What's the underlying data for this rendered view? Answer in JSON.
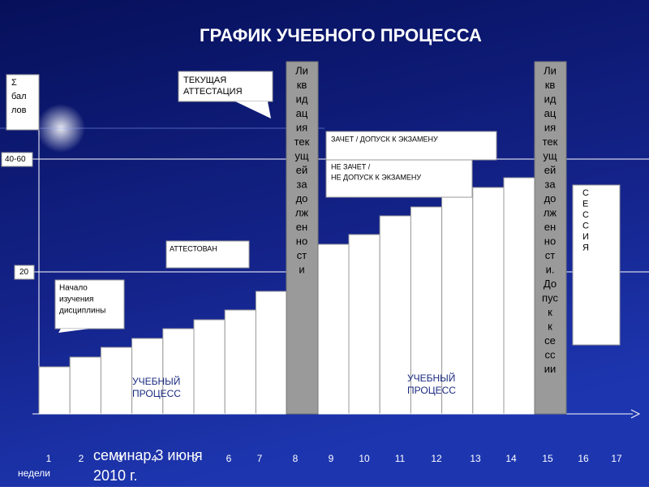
{
  "title": "ГРАФИК УЧЕБНОГО ПРОЦЕССА",
  "sum_label": [
    "Σ",
    "бал",
    "лов"
  ],
  "level_labels": [
    "40-60",
    "20"
  ],
  "callouts": {
    "current": [
      "ТЕКУЩАЯ",
      "АТТЕСТАЦИЯ"
    ],
    "pass": "ЗАЧЕТ / ДОПУСК К ЭКЗАМЕНУ",
    "fail": [
      "НЕ ЗАЧЕТ /",
      "НЕ ДОПУСК К ЭКЗАМЕНУ"
    ],
    "attested": "АТТЕСТОВАН",
    "start": [
      "Начало",
      "изучения",
      "дисциплины"
    ]
  },
  "liquidation_1": [
    "Ли",
    "кв",
    "ид",
    "ац",
    "ия",
    "тек",
    "ущ",
    "ей",
    "за",
    "до",
    "лж",
    "ен",
    "но",
    "ст",
    "и"
  ],
  "liquidation_2": [
    "Ли",
    "кв",
    "ид",
    "ац",
    "ия",
    "тек",
    "ущ",
    "ей",
    "за",
    "до",
    "лж",
    "ен",
    "но",
    "ст",
    "и.",
    "До",
    "пус",
    "к",
    "к",
    "се",
    "сс",
    "ии"
  ],
  "session": [
    "С",
    "Е",
    "С",
    "С",
    "И",
    "Я"
  ],
  "process_1": [
    "УЧЕБНЫЙ",
    "ПРОЦЕСС"
  ],
  "process_2": [
    "УЧЕБНЫЙ",
    "ПРОЦЕСС"
  ],
  "weeks": [
    "1",
    "2",
    "3",
    "4",
    "5",
    "6",
    "7",
    "8",
    "9",
    "10",
    "11",
    "12",
    "13",
    "14",
    "15",
    "16",
    "17"
  ],
  "weeks_label": "недели",
  "footer": [
    "семинар 3 июня",
    "2010 г."
  ]
}
